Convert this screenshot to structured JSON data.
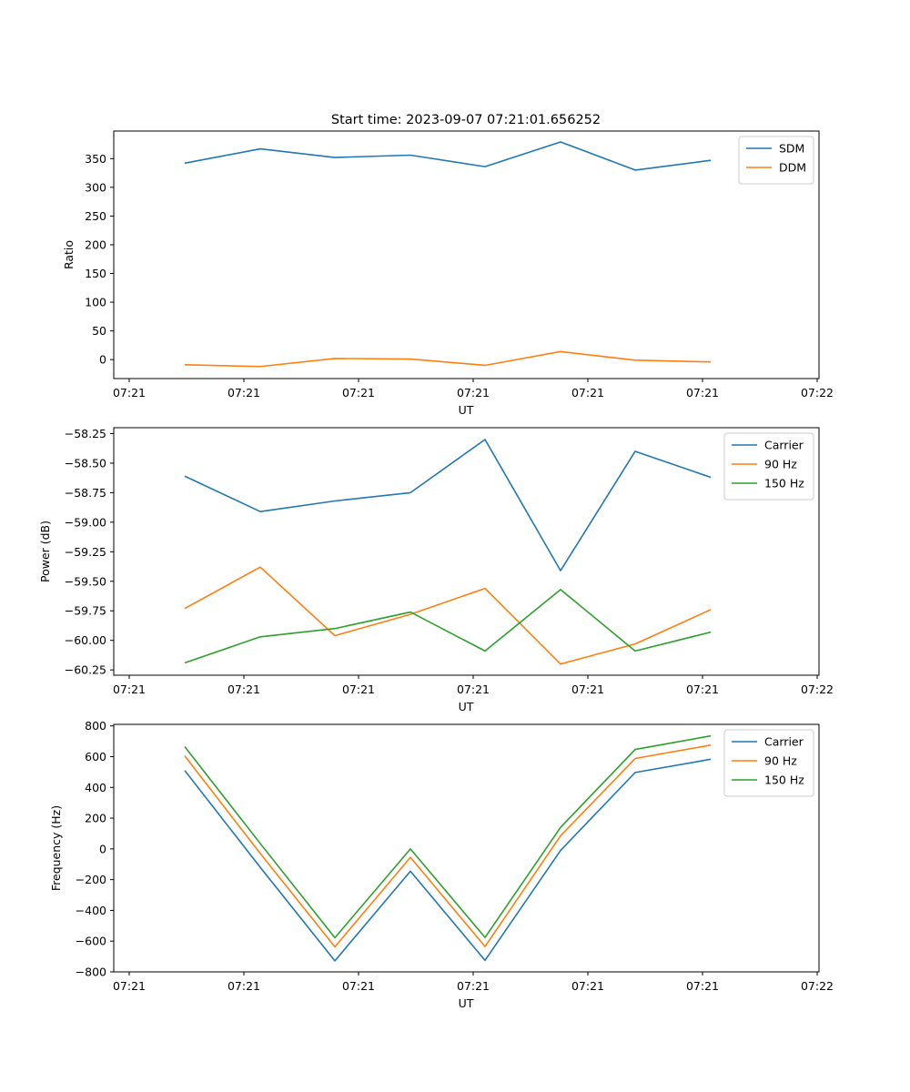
{
  "figure": {
    "title": "Start time: 2023-09-07 07:21:01.656252"
  },
  "chart_data": [
    {
      "type": "line",
      "title": "Start time: 2023-09-07 07:21:01.656252",
      "xlabel": "UT",
      "ylabel": "Ratio",
      "x_tick_labels": [
        "07:21",
        "07:21",
        "07:21",
        "07:21",
        "07:21",
        "07:21",
        "07:22"
      ],
      "y_ticks": [
        0,
        50,
        100,
        150,
        200,
        250,
        300,
        350
      ],
      "y_tick_labels": [
        "0",
        "50",
        "100",
        "150",
        "200",
        "250",
        "300",
        "350"
      ],
      "ylim": [
        -33,
        398
      ],
      "legend_position": "top-right",
      "grid": false,
      "series": [
        {
          "name": "SDM",
          "color": "#1f77b4",
          "values": [
            342,
            367,
            352,
            356,
            336,
            379,
            330,
            347
          ]
        },
        {
          "name": "DDM",
          "color": "#ff7f0e",
          "values": [
            -9,
            -12,
            2,
            1,
            -10,
            14,
            -1,
            -4
          ]
        }
      ]
    },
    {
      "type": "line",
      "title": "",
      "xlabel": "UT",
      "ylabel": "Power (dB)",
      "x_tick_labels": [
        "07:21",
        "07:21",
        "07:21",
        "07:21",
        "07:21",
        "07:21",
        "07:22"
      ],
      "y_ticks": [
        -60.25,
        -60.0,
        -59.75,
        -59.5,
        -59.25,
        -59.0,
        -58.75,
        -58.5,
        -58.25
      ],
      "y_tick_labels": [
        "−60.25",
        "−60.00",
        "−59.75",
        "−59.50",
        "−59.25",
        "−59.00",
        "−58.75",
        "−58.50",
        "−58.25"
      ],
      "ylim": [
        -60.295,
        -58.2
      ],
      "legend_position": "top-right",
      "grid": false,
      "series": [
        {
          "name": "Carrier",
          "color": "#1f77b4",
          "values": [
            -58.61,
            -58.91,
            -58.82,
            -58.75,
            -58.3,
            -59.41,
            -58.4,
            -58.62
          ]
        },
        {
          "name": "90 Hz",
          "color": "#ff7f0e",
          "values": [
            -59.73,
            -59.38,
            -59.96,
            -59.78,
            -59.56,
            -60.2,
            -60.03,
            -59.74
          ]
        },
        {
          "name": "150 Hz",
          "color": "#2ca02c",
          "values": [
            -60.19,
            -59.97,
            -59.9,
            -59.76,
            -60.09,
            -59.57,
            -60.09,
            -59.93
          ]
        }
      ]
    },
    {
      "type": "line",
      "title": "",
      "xlabel": "UT",
      "ylabel": "Frequency (Hz)",
      "x_tick_labels": [
        "07:21",
        "07:21",
        "07:21",
        "07:21",
        "07:21",
        "07:21",
        "07:22"
      ],
      "y_ticks": [
        -800,
        -600,
        -400,
        -200,
        0,
        200,
        400,
        600,
        800
      ],
      "y_tick_labels": [
        "−800",
        "−600",
        "−400",
        "−200",
        "0",
        "200",
        "400",
        "600",
        "800"
      ],
      "ylim": [
        -800,
        810
      ],
      "legend_position": "top-right",
      "grid": false,
      "series": [
        {
          "name": "Carrier",
          "color": "#1f77b4",
          "values": [
            510,
            -120,
            -728,
            -145,
            -725,
            -10,
            497,
            583
          ]
        },
        {
          "name": "90 Hz",
          "color": "#ff7f0e",
          "values": [
            605,
            -30,
            -637,
            -55,
            -635,
            85,
            588,
            675
          ]
        },
        {
          "name": "150 Hz",
          "color": "#2ca02c",
          "values": [
            665,
            35,
            -578,
            0,
            -576,
            140,
            647,
            735
          ]
        }
      ]
    }
  ]
}
